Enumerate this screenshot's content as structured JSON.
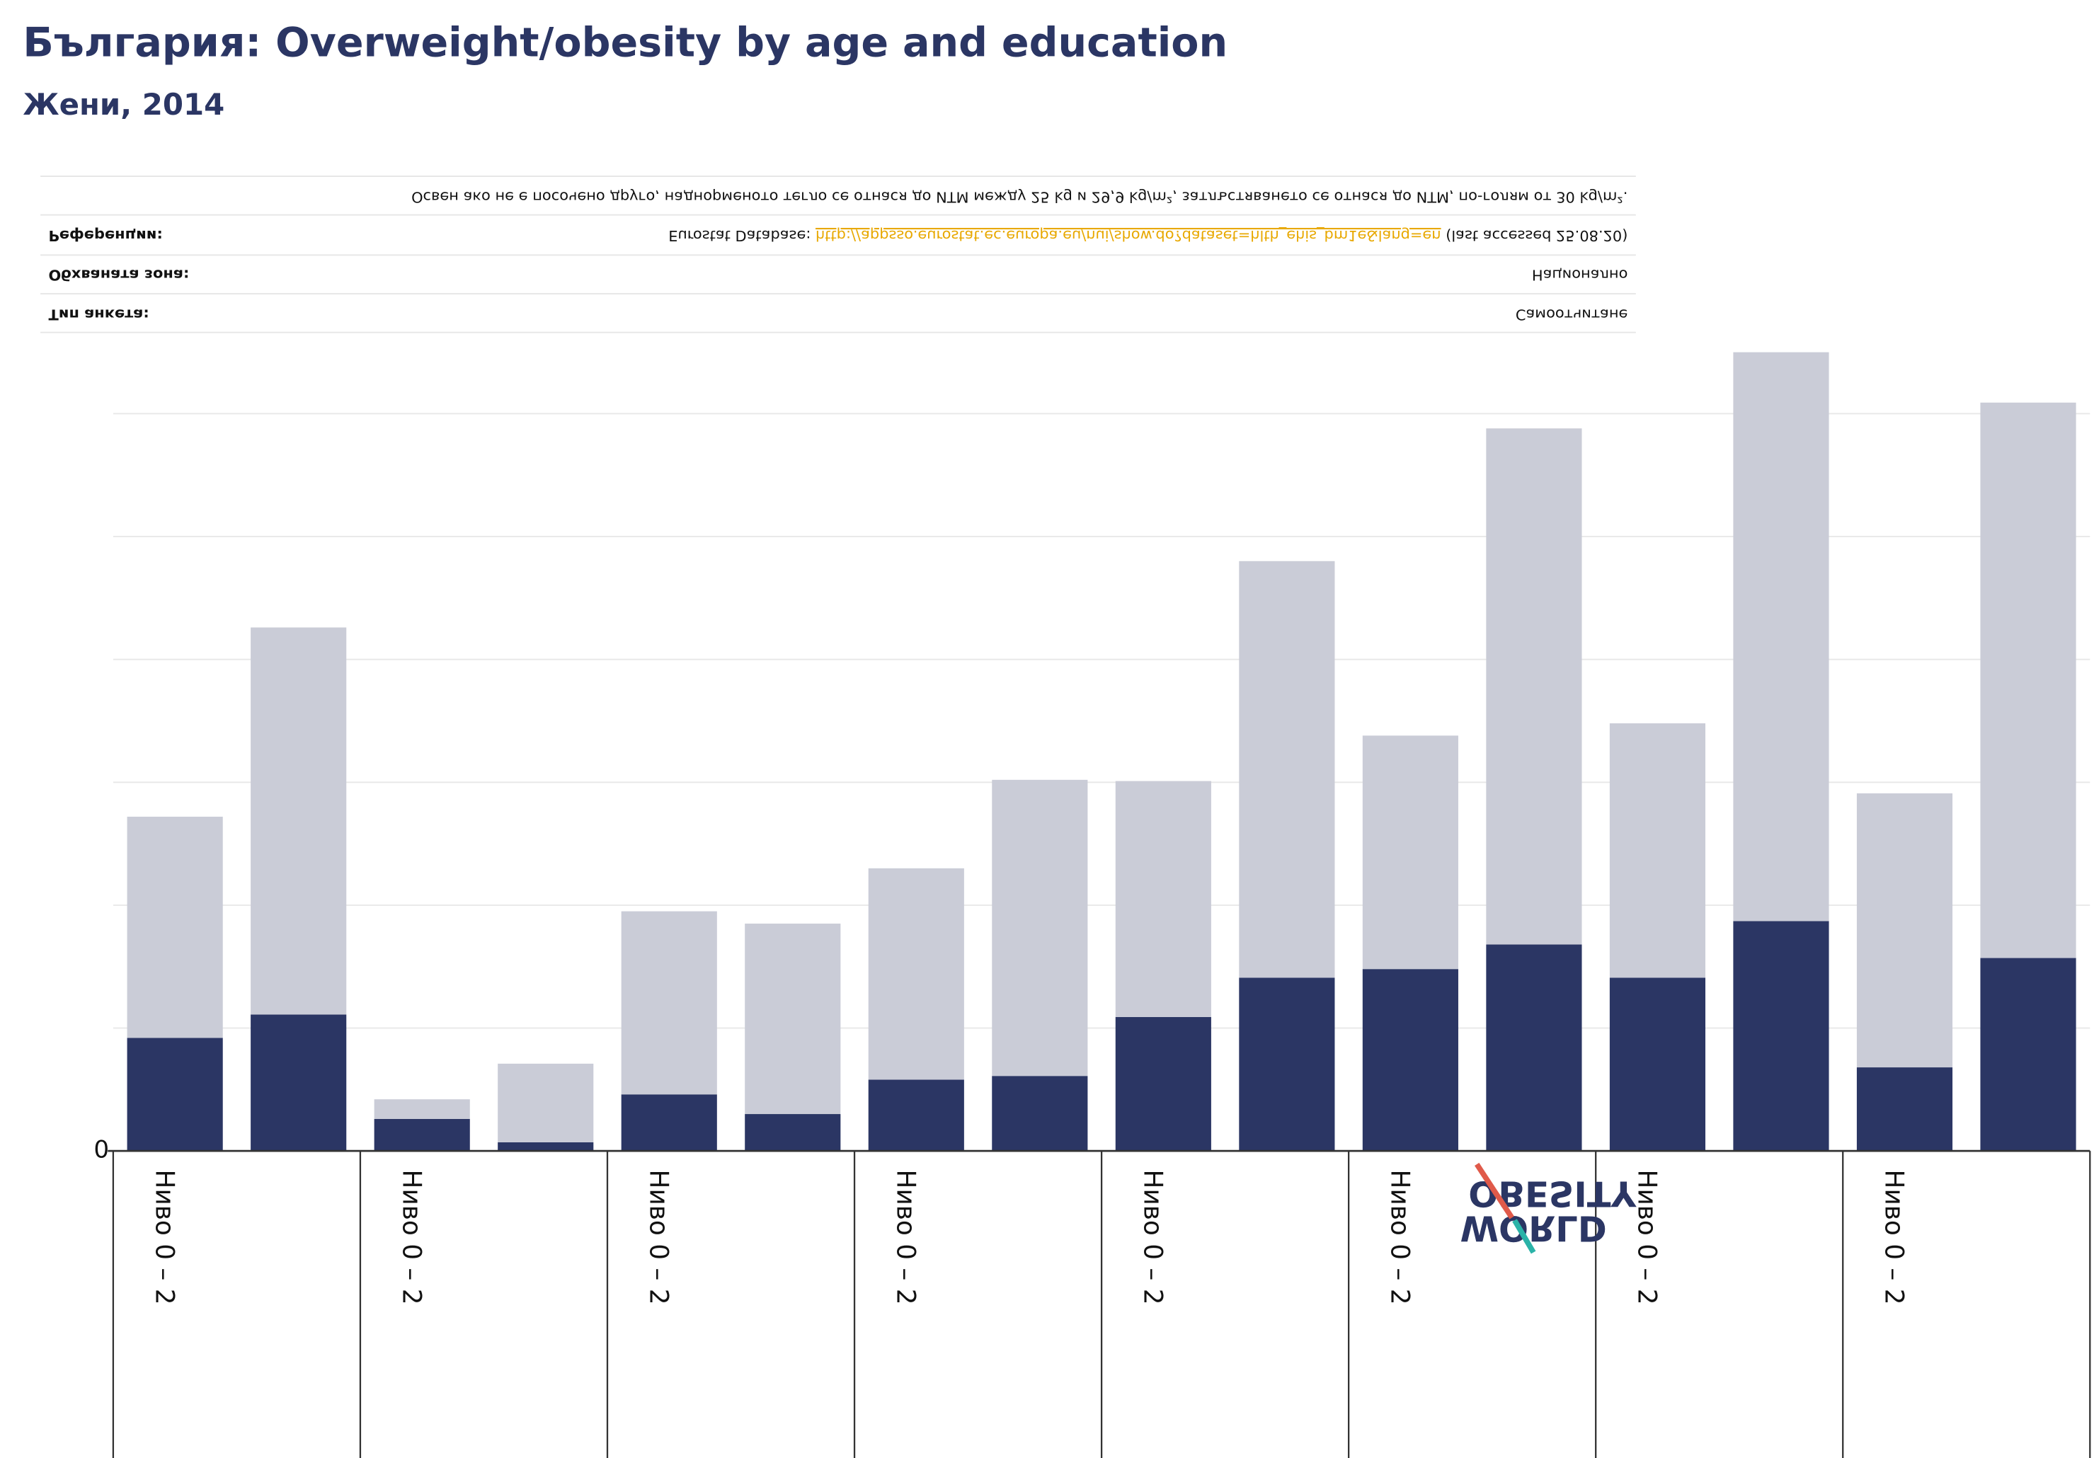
{
  "chart_data": {
    "type": "stacked_bar",
    "title": "България: Overweight/obesity by age and education",
    "subtitle": "Жени, 2014",
    "notes": {
      "note": "Освен ако не е посочено друго, наднорменото тегло се отнася до ИТМ между 25 kg и 29,9 kg/m², затлъстяването се отнася до ИТМ, по-голям от 30 kg/m².",
      "rows": [
        {
          "label": "Референции:",
          "prefix": "Eurostat Database: ",
          "link": "http://appsso.eurostat.ec.europa.eu/nui/show.do?dataset=hlth_ehis_bm1e&lang=en",
          "suffix": " (last accessed 25.08.20)"
        },
        {
          "label": "Обхваната зона:",
          "value": "Национално"
        },
        {
          "label": "Тип анкета:",
          "value": "Самоотчитане"
        }
      ]
    },
    "logo": [
      "OBESITY",
      "WORLD"
    ],
    "categories": [
      "Ниво 0 – 2",
      null,
      "Ниво 0 – 2",
      null,
      "Ниво 0 – 2",
      null,
      "Ниво 0 – 2",
      null,
      "Ниво 0 – 2",
      null,
      "Ниво 0 – 2",
      null,
      "Ниво 0 – 2",
      null,
      "Ниво 0 – 2",
      null
    ],
    "series": [
      {
        "color": "#2b3664",
        "values": [
          9.2,
          11.1,
          2.6,
          0.7,
          4.6,
          3.0,
          5.8,
          6.1,
          10.9,
          14.1,
          14.8,
          16.8,
          14.1,
          18.7,
          6.8,
          15.7
        ]
      },
      {
        "color": "#caccd7",
        "values": [
          18.0,
          31.5,
          1.6,
          6.4,
          14.9,
          15.5,
          17.2,
          24.1,
          19.2,
          33.9,
          19.0,
          42.0,
          20.7,
          46.3,
          22.3,
          45.2
        ]
      }
    ],
    "ylim": [
      0,
      66.5
    ],
    "yticks": [
      0
    ],
    "grid_values": [
      10,
      20,
      30,
      40,
      50,
      60
    ],
    "grid": true
  }
}
